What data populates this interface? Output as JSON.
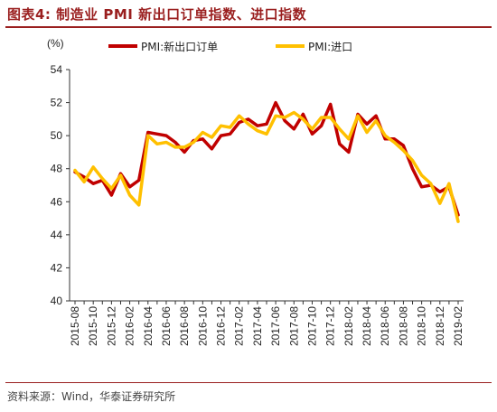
{
  "title": "图表4:  制造业 PMI 新出口订单指数、进口指数",
  "source": "资料来源：Wind，华泰证券研究所",
  "chart_data": {
    "type": "line",
    "ylabel": "(%)",
    "ylim": [
      40,
      54
    ],
    "yticks": [
      40,
      42,
      44,
      46,
      48,
      50,
      52,
      54
    ],
    "grid": false,
    "legend_position": "top",
    "x": [
      "2015-08",
      "2015-09",
      "2015-10",
      "2015-11",
      "2015-12",
      "2016-01",
      "2016-02",
      "2016-03",
      "2016-04",
      "2016-05",
      "2016-06",
      "2016-07",
      "2016-08",
      "2016-09",
      "2016-10",
      "2016-11",
      "2016-12",
      "2017-01",
      "2017-02",
      "2017-03",
      "2017-04",
      "2017-05",
      "2017-06",
      "2017-07",
      "2017-08",
      "2017-09",
      "2017-10",
      "2017-11",
      "2017-12",
      "2018-01",
      "2018-02",
      "2018-03",
      "2018-04",
      "2018-05",
      "2018-06",
      "2018-07",
      "2018-08",
      "2018-09",
      "2018-10",
      "2018-11",
      "2018-12",
      "2019-01",
      "2019-02"
    ],
    "xtick_labels": [
      "2015-08",
      "2015-10",
      "2015-12",
      "2016-02",
      "2016-04",
      "2016-06",
      "2016-08",
      "2016-10",
      "2016-12",
      "2017-02",
      "2017-04",
      "2017-06",
      "2017-08",
      "2017-10",
      "2017-12",
      "2018-02",
      "2018-04",
      "2018-06",
      "2018-08",
      "2018-10",
      "2018-12",
      "2019-02"
    ],
    "series": [
      {
        "name": "PMI:新出口订单",
        "color": "#c00000",
        "values": [
          47.8,
          47.5,
          47.1,
          47.3,
          46.4,
          47.7,
          46.9,
          47.3,
          50.2,
          50.1,
          50.0,
          49.6,
          49.0,
          49.7,
          49.8,
          49.2,
          50.0,
          50.1,
          50.8,
          51.0,
          50.6,
          50.7,
          52.0,
          50.9,
          50.4,
          51.3,
          50.1,
          50.6,
          51.9,
          49.5,
          49.0,
          51.3,
          50.7,
          51.2,
          49.8,
          49.8,
          49.4,
          48.0,
          46.9,
          47.0,
          46.6,
          46.9,
          45.2
        ]
      },
      {
        "name": "PMI:进口",
        "color": "#ffc000",
        "values": [
          47.9,
          47.2,
          48.1,
          47.4,
          46.8,
          47.6,
          46.4,
          45.8,
          50.0,
          49.5,
          49.6,
          49.3,
          49.3,
          49.6,
          50.2,
          49.9,
          50.6,
          50.5,
          51.2,
          50.7,
          50.3,
          50.1,
          51.2,
          51.1,
          51.4,
          51.0,
          50.4,
          51.1,
          51.1,
          50.4,
          49.8,
          51.2,
          50.2,
          50.9,
          50.0,
          49.6,
          49.1,
          48.5,
          47.6,
          47.1,
          45.9,
          47.1,
          44.8
        ]
      }
    ]
  }
}
